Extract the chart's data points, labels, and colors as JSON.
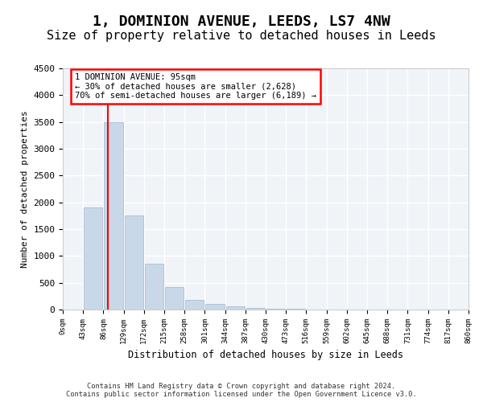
{
  "title": "1, DOMINION AVENUE, LEEDS, LS7 4NW",
  "subtitle": "Size of property relative to detached houses in Leeds",
  "xlabel": "Distribution of detached houses by size in Leeds",
  "ylabel": "Number of detached properties",
  "bar_values": [
    0,
    1900,
    3500,
    1750,
    850,
    425,
    175,
    100,
    60,
    30,
    15,
    8,
    5,
    3,
    2,
    1,
    1,
    0,
    0,
    0
  ],
  "bar_color": "#c8d8e8",
  "bar_edge_color": "#a0b8cc",
  "x_labels": [
    "0sqm",
    "43sqm",
    "86sqm",
    "129sqm",
    "172sqm",
    "215sqm",
    "258sqm",
    "301sqm",
    "344sqm",
    "387sqm",
    "430sqm",
    "473sqm",
    "516sqm",
    "559sqm",
    "602sqm",
    "645sqm",
    "688sqm",
    "731sqm",
    "774sqm",
    "817sqm",
    "860sqm"
  ],
  "ylim": [
    0,
    4500
  ],
  "yticks": [
    0,
    500,
    1000,
    1500,
    2000,
    2500,
    3000,
    3500,
    4000,
    4500
  ],
  "annotation_text": "1 DOMINION AVENUE: 95sqm\n← 30% of detached houses are smaller (2,628)\n70% of semi-detached houses are larger (6,189) →",
  "annotation_box_color": "red",
  "footer_line1": "Contains HM Land Registry data © Crown copyright and database right 2024.",
  "footer_line2": "Contains public sector information licensed under the Open Government Licence v3.0.",
  "background_color": "#f0f4f8",
  "grid_color": "#ffffff",
  "title_fontsize": 13,
  "subtitle_fontsize": 11
}
